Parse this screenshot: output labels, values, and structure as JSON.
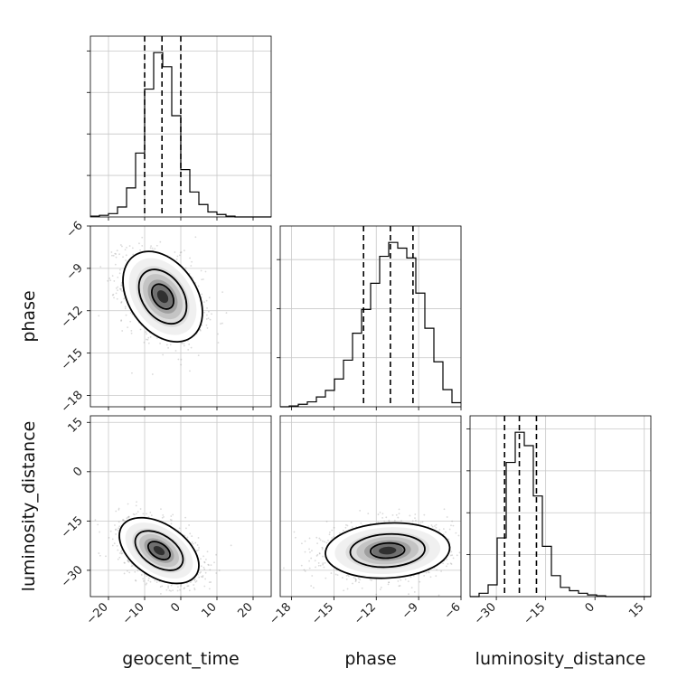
{
  "chart_data": {
    "type": "corner",
    "grid": true,
    "parameters": [
      {
        "name": "geocent_time",
        "label": "geocent_time",
        "range": [
          -25,
          25
        ],
        "ticks": [
          -20,
          -10,
          0,
          10,
          20
        ],
        "tick_labels": [
          "−20",
          "−10",
          "0",
          "10",
          "20"
        ],
        "quantiles": [
          -10,
          -5.2,
          0
        ]
      },
      {
        "name": "phase",
        "label": "phase",
        "range": [
          -18.8,
          -6
        ],
        "ticks": [
          -18,
          -15,
          -12,
          -9,
          -6
        ],
        "tick_labels": [
          "−18",
          "−15",
          "−12",
          "−9",
          "−6"
        ],
        "quantiles": [
          -12.9,
          -11.0,
          -9.4
        ]
      },
      {
        "name": "luminosity_distance",
        "label": "luminosity_distance",
        "range": [
          -38,
          17
        ],
        "ticks": [
          -30,
          -15,
          0,
          15
        ],
        "tick_labels": [
          "−30",
          "−15",
          "0",
          "15"
        ],
        "quantiles": [
          -27.5,
          -23.0,
          -17.8
        ]
      }
    ],
    "histograms": [
      {
        "param": "geocent_time",
        "bin_edges": [
          -25,
          -22.5,
          -20,
          -17.5,
          -15,
          -12.5,
          -10,
          -7.5,
          -5,
          -2.5,
          0,
          2.5,
          5,
          7.5,
          10,
          12.5,
          15,
          17.5,
          20,
          22.5,
          25
        ],
        "counts": [
          1,
          2,
          4,
          12,
          35,
          77,
          154,
          198,
          181,
          122,
          57,
          30,
          15,
          6,
          3,
          1,
          0,
          0,
          0,
          0
        ]
      },
      {
        "param": "phase",
        "bin_edges": [
          -18.8,
          -18.16,
          -17.52,
          -16.88,
          -16.24,
          -15.6,
          -14.96,
          -14.32,
          -13.68,
          -13.04,
          -12.4,
          -11.76,
          -11.12,
          -10.48,
          -9.84,
          -9.2,
          -8.56,
          -7.92,
          -7.28,
          -6.64,
          -6
        ],
        "counts": [
          0,
          1,
          3,
          6,
          12,
          20,
          34,
          57,
          90,
          119,
          151,
          184,
          201,
          194,
          182,
          139,
          96,
          55,
          21,
          5
        ]
      },
      {
        "param": "luminosity_distance",
        "bin_edges": [
          -38,
          -35.25,
          -32.5,
          -29.75,
          -27,
          -24.25,
          -21.5,
          -18.75,
          -16,
          -13.25,
          -10.5,
          -7.75,
          -5,
          -2.25,
          0.5,
          3.25,
          6,
          8.75,
          11.5,
          14.25,
          17
        ],
        "counts": [
          0,
          4,
          14,
          70,
          160,
          196,
          180,
          120,
          60,
          25,
          11,
          7,
          4,
          2,
          1,
          0,
          0,
          0,
          0,
          0
        ]
      }
    ],
    "pairs": [
      {
        "x": "geocent_time",
        "y": "phase",
        "mean": [
          -5,
          -11
        ],
        "sd": [
          5.5,
          1.6
        ],
        "corr": -0.35,
        "level_scales": [
          0.55,
          1.2,
          2.0
        ]
      },
      {
        "x": "geocent_time",
        "y": "luminosity_distance",
        "mean": [
          -6,
          -24
        ],
        "sd": [
          5.5,
          5
        ],
        "corr": -0.45,
        "level_scales": [
          0.55,
          1.2,
          2.0
        ]
      },
      {
        "x": "phase",
        "y": "luminosity_distance",
        "mean": [
          -11.2,
          -24
        ],
        "sd": [
          2.2,
          4.2
        ],
        "corr": 0.1,
        "level_scales": [
          0.55,
          1.2,
          2.0
        ]
      }
    ]
  }
}
